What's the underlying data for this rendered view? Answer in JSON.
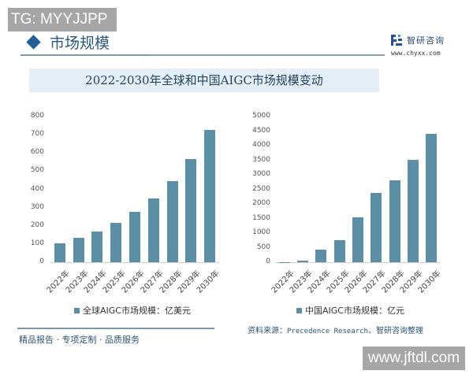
{
  "watermarks": {
    "top_left": "TG: MYYJJPP",
    "bottom_right": "www.jftdl.com"
  },
  "header": {
    "section_title": "市场规模",
    "brand_name": "智研咨询",
    "brand_url": "www.chyxx.com"
  },
  "title": "2022-2030年全球和中国AIGC市场规模变动",
  "footer": {
    "slogan": "精品报告 · 专项定制 · 品质服务",
    "source_label": "资料来源：",
    "source_text": "Precedence Research",
    "source_suffix": "、智研咨询整理"
  },
  "colors": {
    "bar": "#5b8fa6",
    "title_band": "#e3eef7",
    "accent": "#1f5f96"
  },
  "chart_data": [
    {
      "type": "bar",
      "title": "全球AIGC市场规模",
      "categories": [
        "2022年",
        "2023年",
        "2024年",
        "2025年",
        "2026年",
        "2027年",
        "2028年",
        "2029年",
        "2030年"
      ],
      "series": [
        {
          "name": "全球AIGC市场规模：亿美元",
          "values": [
            102,
            134,
            170,
            216,
            276,
            352,
            447,
            568,
            727
          ]
        }
      ],
      "yticks": [
        "0",
        "100",
        "200",
        "300",
        "400",
        "500",
        "600",
        "700",
        "800"
      ],
      "ylim": [
        0,
        800
      ],
      "xlabel": "",
      "ylabel": "",
      "legend_position": "bottom",
      "grid": false
    },
    {
      "type": "bar",
      "title": "中国AIGC市场规模",
      "categories": [
        "2022年",
        "2023年",
        "2024年",
        "2025年",
        "2026年",
        "2027年",
        "2028年",
        "2029年",
        "2030年"
      ],
      "series": [
        {
          "name": "中国AIGC市场规模：亿元",
          "values": [
            10,
            55,
            442,
            766,
            1537,
            2384,
            2815,
            3506,
            4396
          ]
        }
      ],
      "yticks": [
        "0",
        "500",
        "1000",
        "1500",
        "2000",
        "2500",
        "3000",
        "3500",
        "4000",
        "4500",
        "5000"
      ],
      "ylim": [
        0,
        5000
      ],
      "xlabel": "",
      "ylabel": "",
      "legend_position": "bottom",
      "grid": false
    }
  ]
}
